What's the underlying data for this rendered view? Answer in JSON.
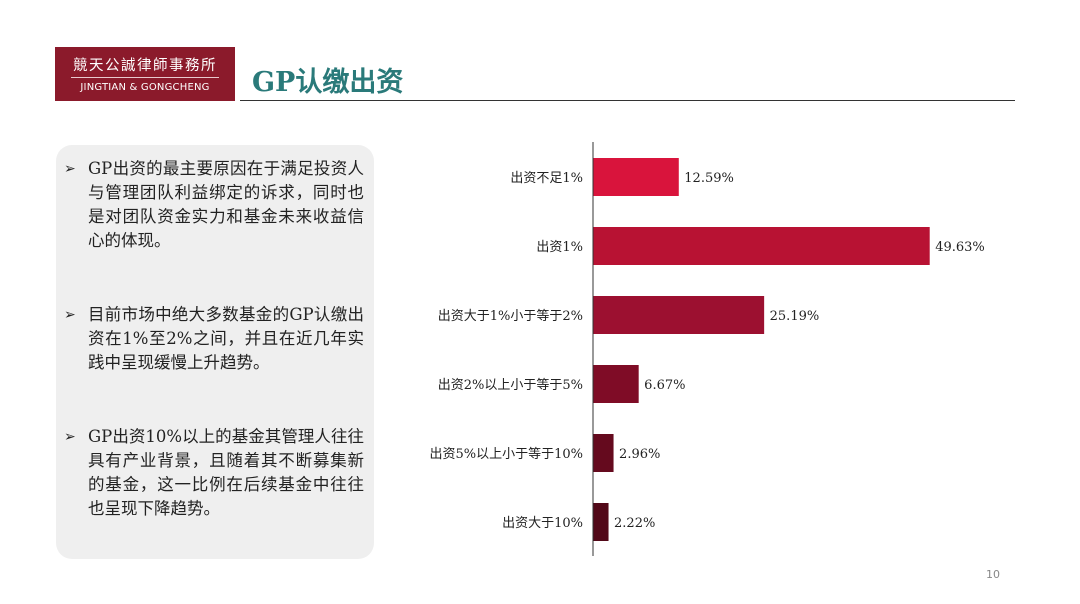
{
  "header": {
    "logo_cn": "競天公誠律師事務所",
    "logo_en": "JINGTIAN & GONGCHENG",
    "title": "GP认缴出资"
  },
  "bullets": [
    {
      "icon": "arrow-bullet-icon",
      "text": "GP出资的最主要原因在于满足投资人与管理团队利益绑定的诉求，同时也是对团队资金实力和基金未来收益信心的体现。"
    },
    {
      "icon": "arrow-bullet-icon",
      "text": "目前市场中绝大多数基金的GP认缴出资在1%至2%之间，并且在近几年实践中呈现缓慢上升趋势。"
    },
    {
      "icon": "arrow-bullet-icon",
      "text": "GP出资10%以上的基金其管理人往往具有产业背景，且随着其不断募集新的基金，这一比例在后续基金中往往也呈现下降趋势。"
    }
  ],
  "chart_data": {
    "type": "bar",
    "orientation": "horizontal",
    "categories": [
      "出资不足1%",
      "出资1%",
      "出资大于1%小于等于2%",
      "出资2%以上小于等于5%",
      "出资5%以上小于等于10%",
      "出资大于10%"
    ],
    "values": [
      12.59,
      49.63,
      25.19,
      6.67,
      2.96,
      2.22
    ],
    "value_labels": [
      "12.59%",
      "49.63%",
      "25.19%",
      "6.67%",
      "2.96%",
      "2.22%"
    ],
    "colors": [
      "#d9143c",
      "#b81233",
      "#9c1030",
      "#7f0c26",
      "#650a1e",
      "#520818"
    ],
    "xlim": [
      0,
      62
    ],
    "grid": false,
    "title": "",
    "xlabel": "",
    "ylabel": ""
  },
  "footer": {
    "page_number": "10"
  }
}
